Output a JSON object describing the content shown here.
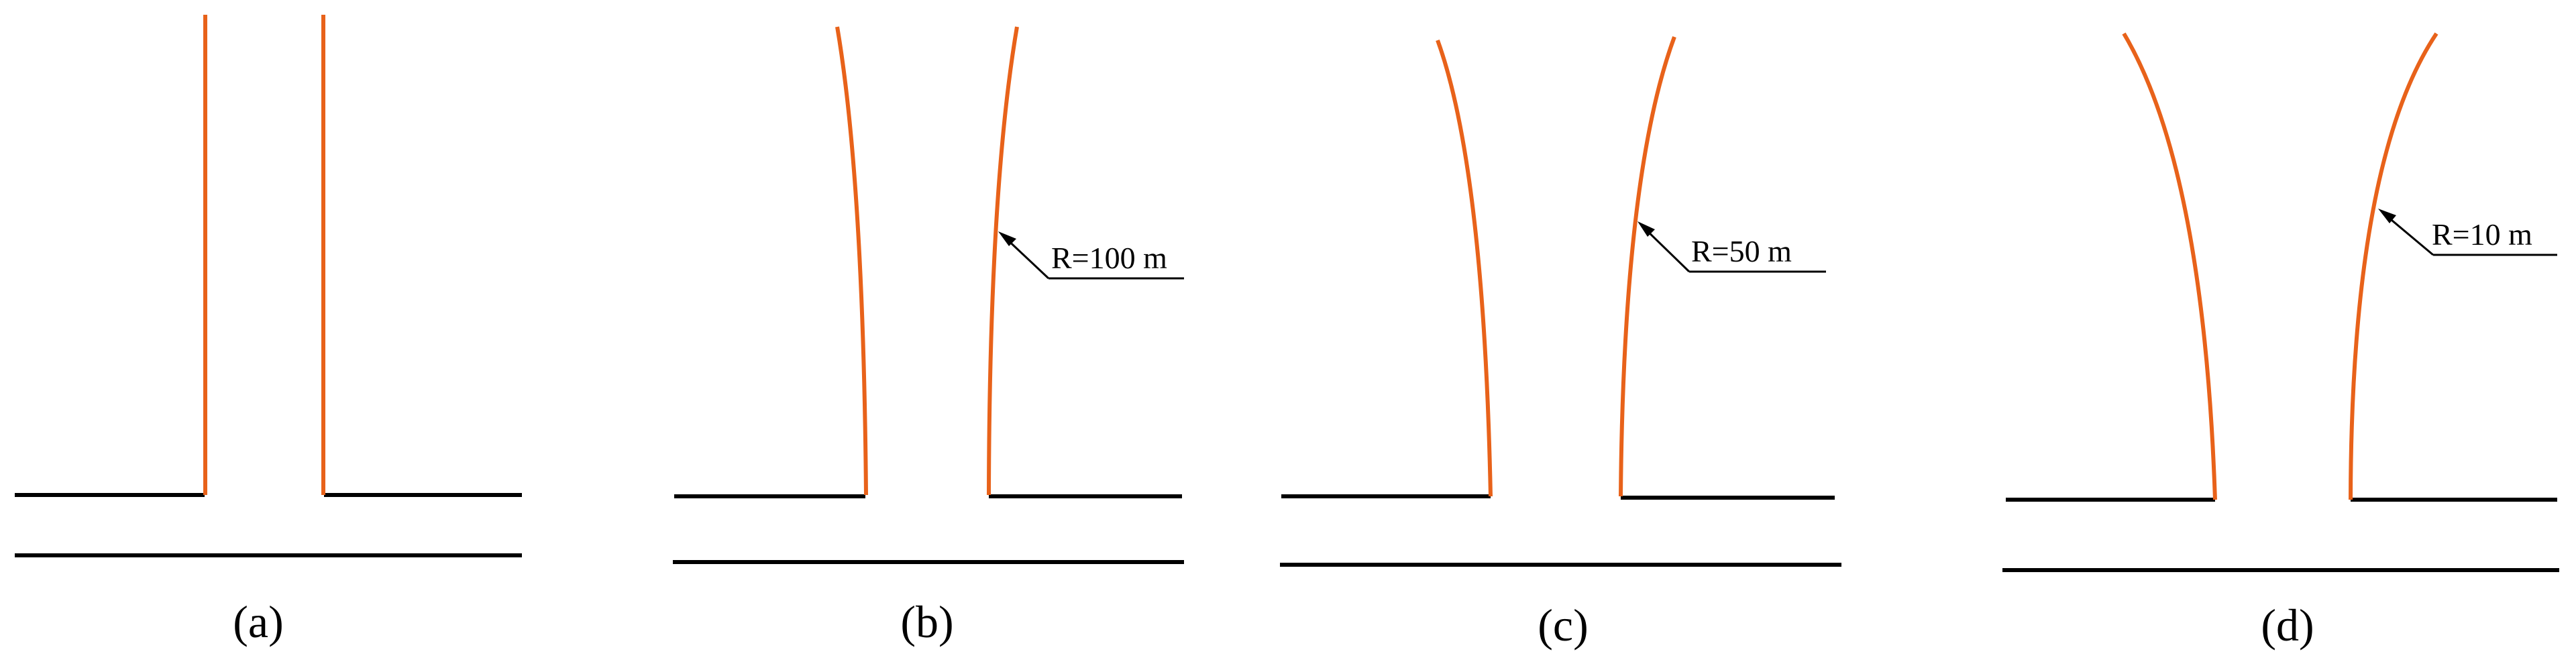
{
  "panels": [
    {
      "id": "a",
      "label": "(a)",
      "radius_label": ""
    },
    {
      "id": "b",
      "label": "(b)",
      "radius_label": "R=100 m"
    },
    {
      "id": "c",
      "label": "(c)",
      "radius_label": "R=50 m"
    },
    {
      "id": "d",
      "label": "(d)",
      "radius_label": "R=10 m"
    }
  ],
  "colors": {
    "channel_wall": "#e8621a",
    "main_channel": "#000000",
    "annotation": "#000000"
  }
}
